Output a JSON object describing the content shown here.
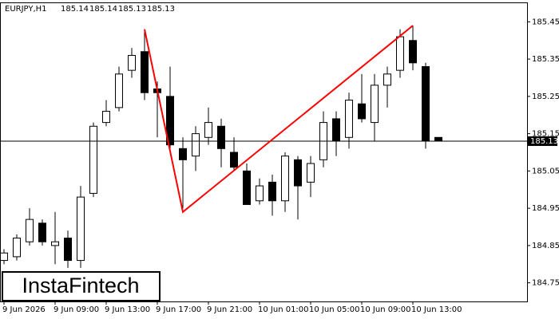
{
  "chart_data": {
    "type": "candlestick",
    "title": "EURJPY,H1",
    "categories": [
      "9 Jun 2026",
      null,
      null,
      null,
      "9 Jun 09:00",
      null,
      null,
      null,
      "9 Jun 13:00",
      null,
      null,
      null,
      "9 Jun 17:00",
      null,
      null,
      null,
      "9 Jun 21:00",
      null,
      null,
      null,
      "10 Jun 01:00",
      null,
      null,
      null,
      "10 Jun 05:00",
      null,
      null,
      null,
      "10 Jun 09:00",
      null,
      null,
      null,
      "10 Jun 13:00",
      null,
      null
    ],
    "open": [
      184.81,
      184.82,
      184.86,
      184.91,
      184.85,
      184.87,
      184.81,
      184.99,
      185.18,
      185.22,
      185.32,
      185.37,
      185.27,
      185.25,
      185.11,
      185.09,
      185.14,
      185.17,
      185.1,
      185.05,
      184.97,
      185.02,
      184.97,
      185.08,
      185.02,
      185.08,
      185.19,
      185.14,
      185.23,
      185.18,
      185.28,
      185.32,
      185.4,
      185.33,
      185.14
    ],
    "high": [
      184.84,
      184.88,
      184.95,
      184.92,
      184.94,
      184.89,
      185.01,
      185.18,
      185.24,
      185.33,
      185.38,
      185.43,
      185.29,
      185.33,
      185.14,
      185.17,
      185.22,
      185.19,
      185.14,
      185.07,
      185.03,
      185.04,
      185.1,
      185.09,
      185.09,
      185.21,
      185.21,
      185.26,
      185.31,
      185.31,
      185.33,
      185.43,
      185.44,
      185.34,
      185.14
    ],
    "low": [
      184.8,
      184.81,
      184.85,
      184.85,
      184.8,
      184.79,
      184.79,
      184.98,
      185.17,
      185.21,
      185.3,
      185.24,
      185.14,
      185.1,
      184.95,
      185.05,
      185.12,
      185.06,
      185.05,
      184.96,
      184.96,
      184.93,
      184.94,
      184.92,
      184.98,
      185.06,
      185.09,
      185.11,
      185.18,
      185.13,
      185.22,
      185.3,
      185.32,
      185.11,
      185.13
    ],
    "close": [
      184.83,
      184.87,
      184.92,
      184.86,
      184.86,
      184.81,
      184.98,
      185.17,
      185.21,
      185.31,
      185.36,
      185.26,
      185.26,
      185.12,
      185.08,
      185.15,
      185.18,
      185.11,
      185.06,
      184.96,
      185.01,
      184.97,
      185.09,
      185.01,
      185.07,
      185.18,
      185.13,
      185.24,
      185.19,
      185.28,
      185.31,
      185.41,
      185.34,
      185.13,
      185.13
    ],
    "up_color": "#ffffff",
    "down_color": "#000000",
    "ylim": [
      184.7,
      185.5
    ],
    "yticks": [
      184.75,
      184.85,
      184.95,
      185.05,
      185.15,
      185.25,
      185.35,
      185.45
    ],
    "pattern": {
      "color": "#ff0000",
      "x": [
        11,
        14,
        32
      ],
      "values": [
        185.43,
        184.94,
        185.44
      ]
    },
    "watermark": "InstaFintech"
  }
}
